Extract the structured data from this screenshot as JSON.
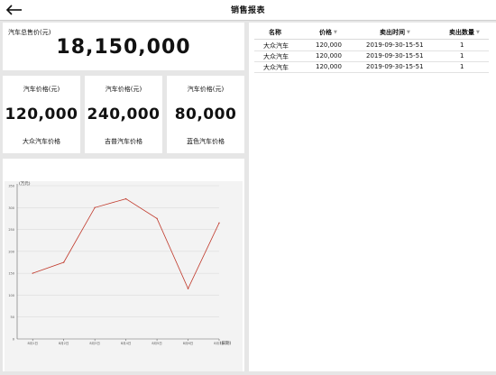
{
  "header": {
    "title": "销售报表",
    "back_icon": "arrow-left-icon"
  },
  "summary": {
    "total_label": "汽车总售价(元)",
    "total_value": "18,150,000"
  },
  "price_cards": [
    {
      "label": "汽车价格(元)",
      "value": "120,000",
      "name": "大众汽车价格"
    },
    {
      "label": "汽车价格(元)",
      "value": "240,000",
      "name": "吉普汽车价格"
    },
    {
      "label": "汽车价格(元)",
      "value": "80,000",
      "name": "蓝色汽车价格"
    }
  ],
  "table": {
    "columns": [
      "名称",
      "价格",
      "卖出时间",
      "卖出数量"
    ],
    "rows": [
      [
        "大众汽车",
        "120,000",
        "2019-09-30-15-51",
        "1"
      ],
      [
        "大众汽车",
        "120,000",
        "2019-09-30-15-51",
        "1"
      ],
      [
        "大众汽车",
        "120,000",
        "2019-09-30-15-51",
        "1"
      ]
    ]
  },
  "chart_data": {
    "type": "line",
    "ylabel": "(万元)",
    "xlabel": "(日期)",
    "categories": [
      "8月1日",
      "8月2日",
      "8月3日",
      "8月4日",
      "8月5日",
      "8月6日",
      "8月7日"
    ],
    "values": [
      150,
      175,
      300,
      320,
      275,
      115,
      265
    ],
    "ylim": [
      0,
      350
    ],
    "yticks": [
      0,
      50,
      100,
      150,
      200,
      250,
      300,
      350
    ],
    "grid": true,
    "line_color": "#c0392b",
    "plot_bg": "#f3f3f3"
  }
}
